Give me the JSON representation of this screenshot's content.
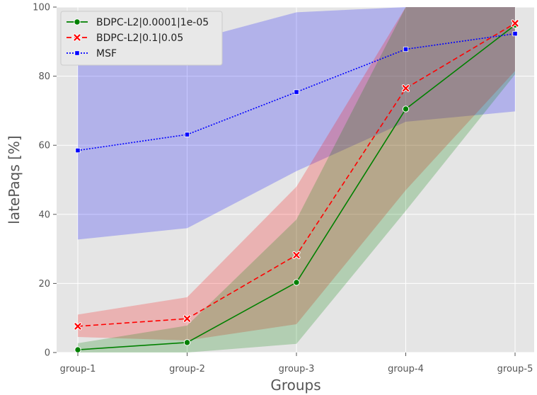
{
  "chart_data": {
    "type": "line",
    "xlabel": "Groups",
    "ylabel": "latePaqs [%]",
    "categories": [
      "group-1",
      "group-2",
      "group-3",
      "group-4",
      "group-5"
    ],
    "ylim": [
      0,
      100
    ],
    "yticks": [
      0,
      20,
      40,
      60,
      80,
      100
    ],
    "grid": true,
    "legend_position": "top-left",
    "series": [
      {
        "name": "BDPC-L2|0.0001|1e-05",
        "color": "#008000",
        "line_style": "solid",
        "marker": "circle",
        "values": [
          0.8,
          2.9,
          20.3,
          70.5,
          94.8
        ],
        "band_lower": [
          0,
          0,
          2.5,
          41,
          80.5
        ],
        "band_upper": [
          2.7,
          7.8,
          38.5,
          100,
          100
        ]
      },
      {
        "name": "BDPC-L2|0.1|0.05",
        "color": "#ff0000",
        "line_style": "dashed",
        "marker": "x",
        "values": [
          7.6,
          9.8,
          28.2,
          76.5,
          95.3
        ],
        "band_lower": [
          4.5,
          3.5,
          8.2,
          47,
          81.5
        ],
        "band_upper": [
          11,
          16,
          48,
          100,
          100
        ]
      },
      {
        "name": "MSF",
        "color": "#0000ff",
        "line_style": "dotted",
        "marker": "square",
        "values": [
          58.5,
          63.1,
          75.4,
          87.8,
          92.3
        ],
        "band_lower": [
          32.7,
          36,
          52.5,
          66.8,
          69.8
        ],
        "band_upper": [
          84.2,
          90,
          98.5,
          100,
          100
        ]
      }
    ]
  }
}
